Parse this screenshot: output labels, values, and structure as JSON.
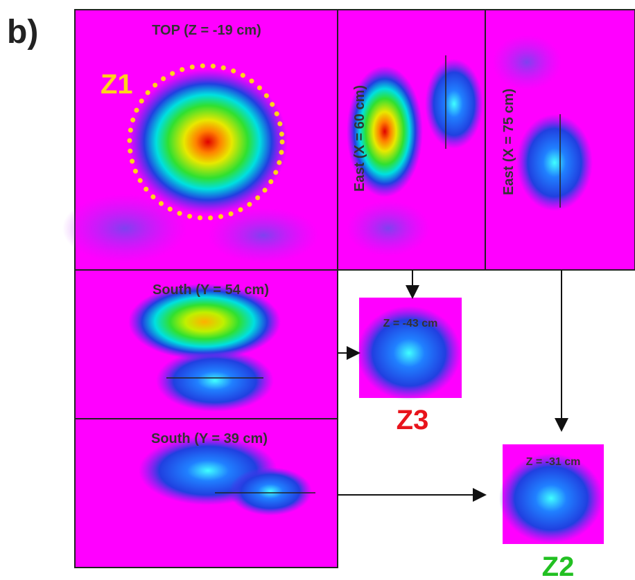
{
  "figure_label": "b)",
  "panels": [
    {
      "label": "TOP (Z = -19 cm)"
    },
    {
      "label": "East (X = 60 cm)"
    },
    {
      "label": "East (X = 75 cm)"
    },
    {
      "label": "South (Y = 54 cm)"
    },
    {
      "label": "South (Y = 39 cm)"
    },
    {
      "label": "Z = -43 cm"
    },
    {
      "label": "Z = -31 cm"
    }
  ],
  "zones": [
    "Z1",
    "Z3",
    "Z2"
  ]
}
